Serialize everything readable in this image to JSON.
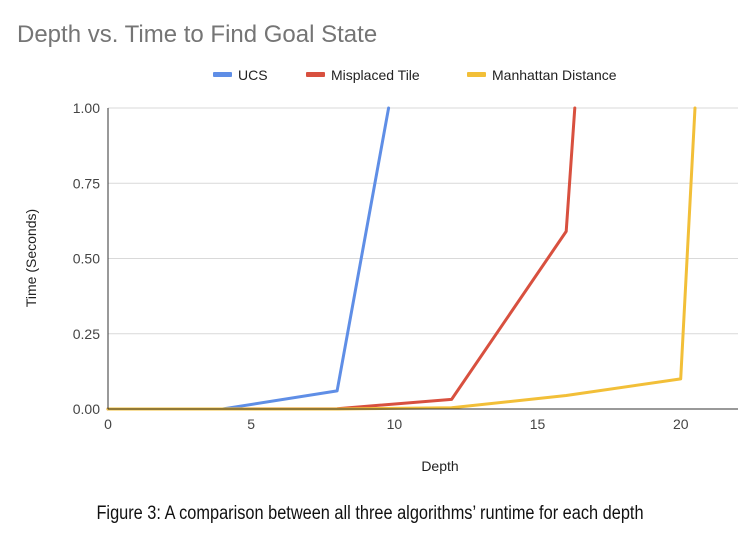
{
  "chart_data": {
    "type": "line",
    "title": "Depth vs. Time to Find Goal State",
    "xlabel": "Depth",
    "ylabel": "Time (Seconds)",
    "xlim": [
      0,
      22
    ],
    "ylim": [
      0,
      1.0
    ],
    "x_ticks": [
      0,
      5,
      10,
      15,
      20
    ],
    "y_ticks": [
      0,
      0.25,
      0.5,
      0.75,
      1.0
    ],
    "x_tick_labels": [
      "0",
      "5",
      "10",
      "15",
      "20"
    ],
    "y_tick_labels": [
      "0.00",
      "0.25",
      "0.50",
      "0.75",
      "1.00"
    ],
    "grid": "horizontal",
    "legend_position": "top",
    "series": [
      {
        "name": "UCS",
        "color": "#5f8ee6",
        "x": [
          0,
          4,
          8,
          9.8
        ],
        "y": [
          0,
          0.0,
          0.06,
          1.0
        ]
      },
      {
        "name": "Misplaced Tile",
        "color": "#d8503f",
        "x": [
          0,
          4,
          8,
          12,
          16,
          16.3
        ],
        "y": [
          0,
          0,
          0.001,
          0.032,
          0.59,
          1.0
        ]
      },
      {
        "name": "Manhattan Distance",
        "color": "#f2bf38",
        "x": [
          0,
          4,
          8,
          12,
          16,
          20,
          20.5
        ],
        "y": [
          0,
          0,
          0,
          0.004,
          0.045,
          0.1,
          1.0
        ]
      }
    ]
  },
  "caption": "Figure 3: A comparison between all three algorithms’ runtime for each depth"
}
